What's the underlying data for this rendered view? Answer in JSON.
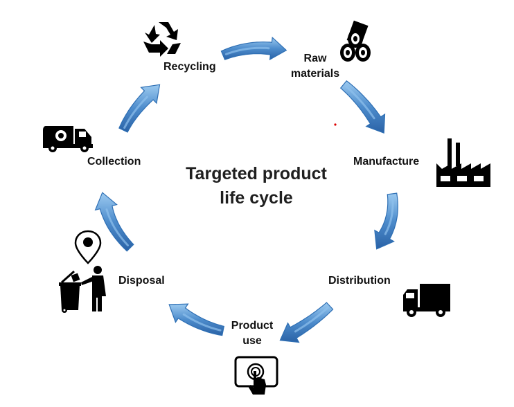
{
  "title": {
    "line1": "Targeted product",
    "line2": "life cycle"
  },
  "stages": {
    "recycling": "Recycling",
    "raw_materials_1": "Raw",
    "raw_materials_2": "materials",
    "manufacture": "Manufacture",
    "distribution": "Distribution",
    "product_use_1": "Product",
    "product_use_2": "use",
    "disposal": "Disposal",
    "collection": "Collection"
  },
  "colors": {
    "arrow_dark": "#2e6fb4",
    "arrow_light": "#8ec0ec",
    "icon": "#000000"
  }
}
